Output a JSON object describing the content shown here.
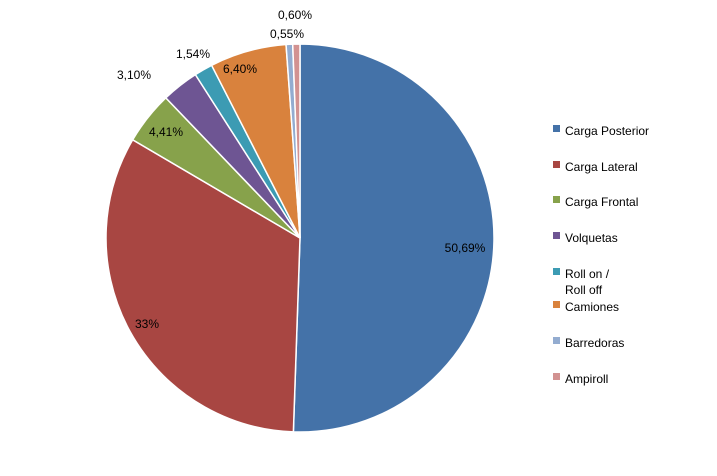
{
  "chart_data": {
    "type": "pie",
    "title": "",
    "categories": [
      "Carga Posterior",
      "Carga Lateral",
      "Carga Frontal",
      "Volquetas",
      "Roll on / Roll off",
      "Camiones",
      "Barredoras",
      "Ampiroll"
    ],
    "values": [
      50.69,
      33,
      4.41,
      3.1,
      1.54,
      6.4,
      0.55,
      0.6
    ],
    "data_labels": [
      "50,69%",
      "33%",
      "4,41%",
      "3,10%",
      "1,54%",
      "6,40%",
      "0,55%",
      "0,60%"
    ],
    "colors": [
      "#4472a8",
      "#a84642",
      "#87a24b",
      "#6e5593",
      "#3c9bb3",
      "#d9823d",
      "#93acd0",
      "#d29291"
    ],
    "legend": {
      "position": "right",
      "entries": [
        {
          "lines": [
            "Carga Posterior"
          ]
        },
        {
          "lines": [
            "Carga Lateral"
          ]
        },
        {
          "lines": [
            "Carga Frontal"
          ]
        },
        {
          "lines": [
            "Volquetas"
          ]
        },
        {
          "lines": [
            "Roll on /",
            "Roll off"
          ]
        },
        {
          "lines": [
            "Camiones"
          ]
        },
        {
          "lines": [
            "Barredoras"
          ]
        },
        {
          "lines": [
            "Ampiroll"
          ]
        }
      ]
    }
  }
}
